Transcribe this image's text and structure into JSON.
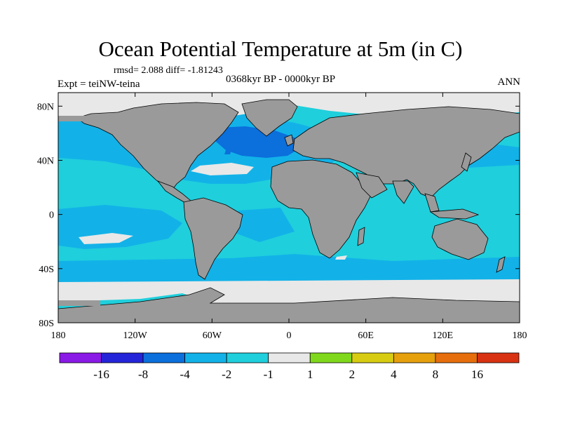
{
  "title": "Ocean Potential Temperature at 5m (in C)",
  "stats_line": "rmsd= 2.088  diff= -1.81243",
  "experiment": "Expt = teiNW-teina",
  "period": "0368kyr BP - 0000kyr BP",
  "season": "ANN",
  "map": {
    "lat_ticks": [
      {
        "lat": 80,
        "label": "80N"
      },
      {
        "lat": 40,
        "label": "40N"
      },
      {
        "lat": 0,
        "label": "0"
      },
      {
        "lat": -40,
        "label": "40S"
      },
      {
        "lat": -80,
        "label": "80S"
      }
    ],
    "lon_ticks": [
      {
        "lon": -180,
        "label": "180"
      },
      {
        "lon": -120,
        "label": "120W"
      },
      {
        "lon": -60,
        "label": "60W"
      },
      {
        "lon": 0,
        "label": "0"
      },
      {
        "lon": 60,
        "label": "60E"
      },
      {
        "lon": 120,
        "label": "120E"
      },
      {
        "lon": 180,
        "label": "180"
      }
    ],
    "colors": {
      "ocean_base": "#1fcfdc",
      "ocean_mid": "#12b2e8",
      "ocean_deep": "#0b6fdc",
      "sea_ice": "#e8e8e8",
      "land": "#9a9a9a"
    }
  },
  "colorbar": {
    "colors": [
      "#8a1ae6",
      "#2424d8",
      "#0b6fdc",
      "#12b2e8",
      "#1fcfdc",
      "#e8e8e8",
      "#80d81c",
      "#d8cc12",
      "#e6a00c",
      "#e66e0c",
      "#d83212"
    ],
    "labels": [
      "-16",
      "-8",
      "-4",
      "-2",
      "-1",
      "1",
      "2",
      "4",
      "8",
      "16"
    ]
  }
}
